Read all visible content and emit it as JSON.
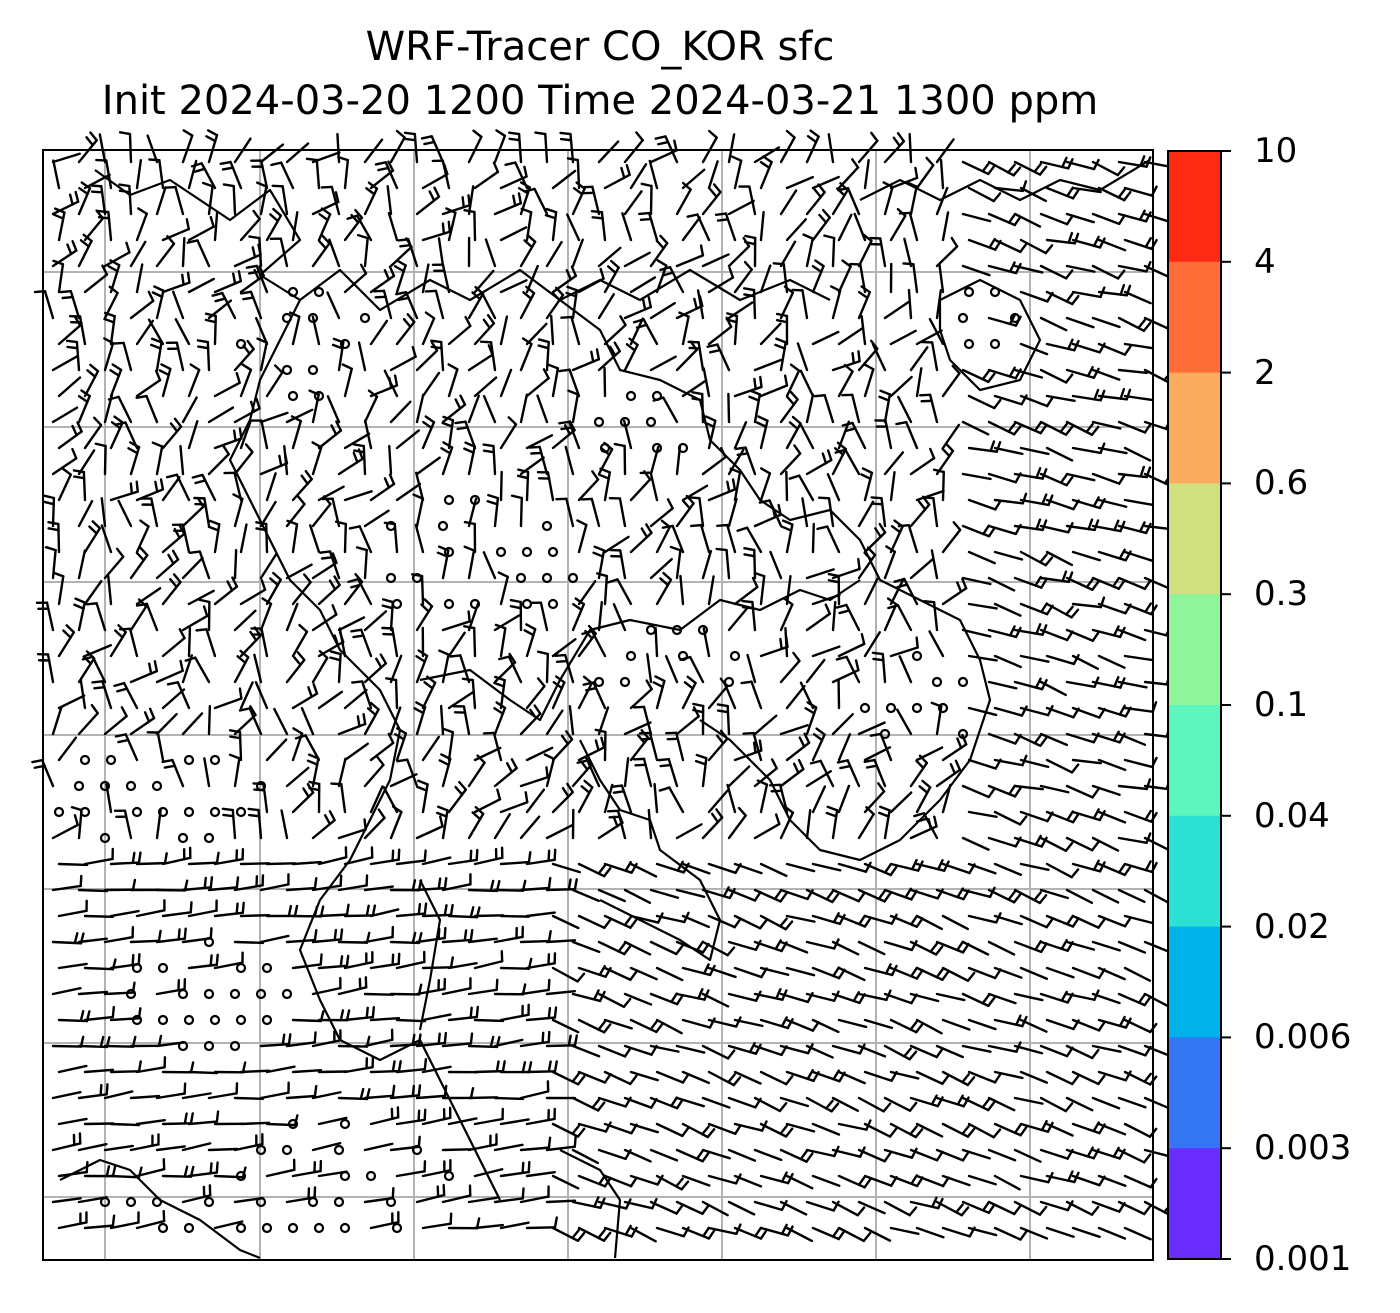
{
  "title": {
    "line1": "WRF-Tracer CO_KOR sfc",
    "line2": "Init 2024-03-20 1200 Time 2024-03-21 1300 ppm"
  },
  "map": {
    "field": "CO_KOR",
    "level": "sfc",
    "units": "ppm",
    "grid_lines": true,
    "wind_barbs": true,
    "coastlines": true
  },
  "colorbar": {
    "ticks": [
      "10",
      "4",
      "2",
      "0.6",
      "0.3",
      "0.1",
      "0.04",
      "0.02",
      "0.006",
      "0.003",
      "0.001"
    ],
    "colors": [
      "#ff2a12",
      "#ff6e38",
      "#fbac5e",
      "#d0e081",
      "#8ef59a",
      "#5cf6be",
      "#2ce0d3",
      "#00b2ea",
      "#3576f5",
      "#6a2dfe"
    ]
  }
}
